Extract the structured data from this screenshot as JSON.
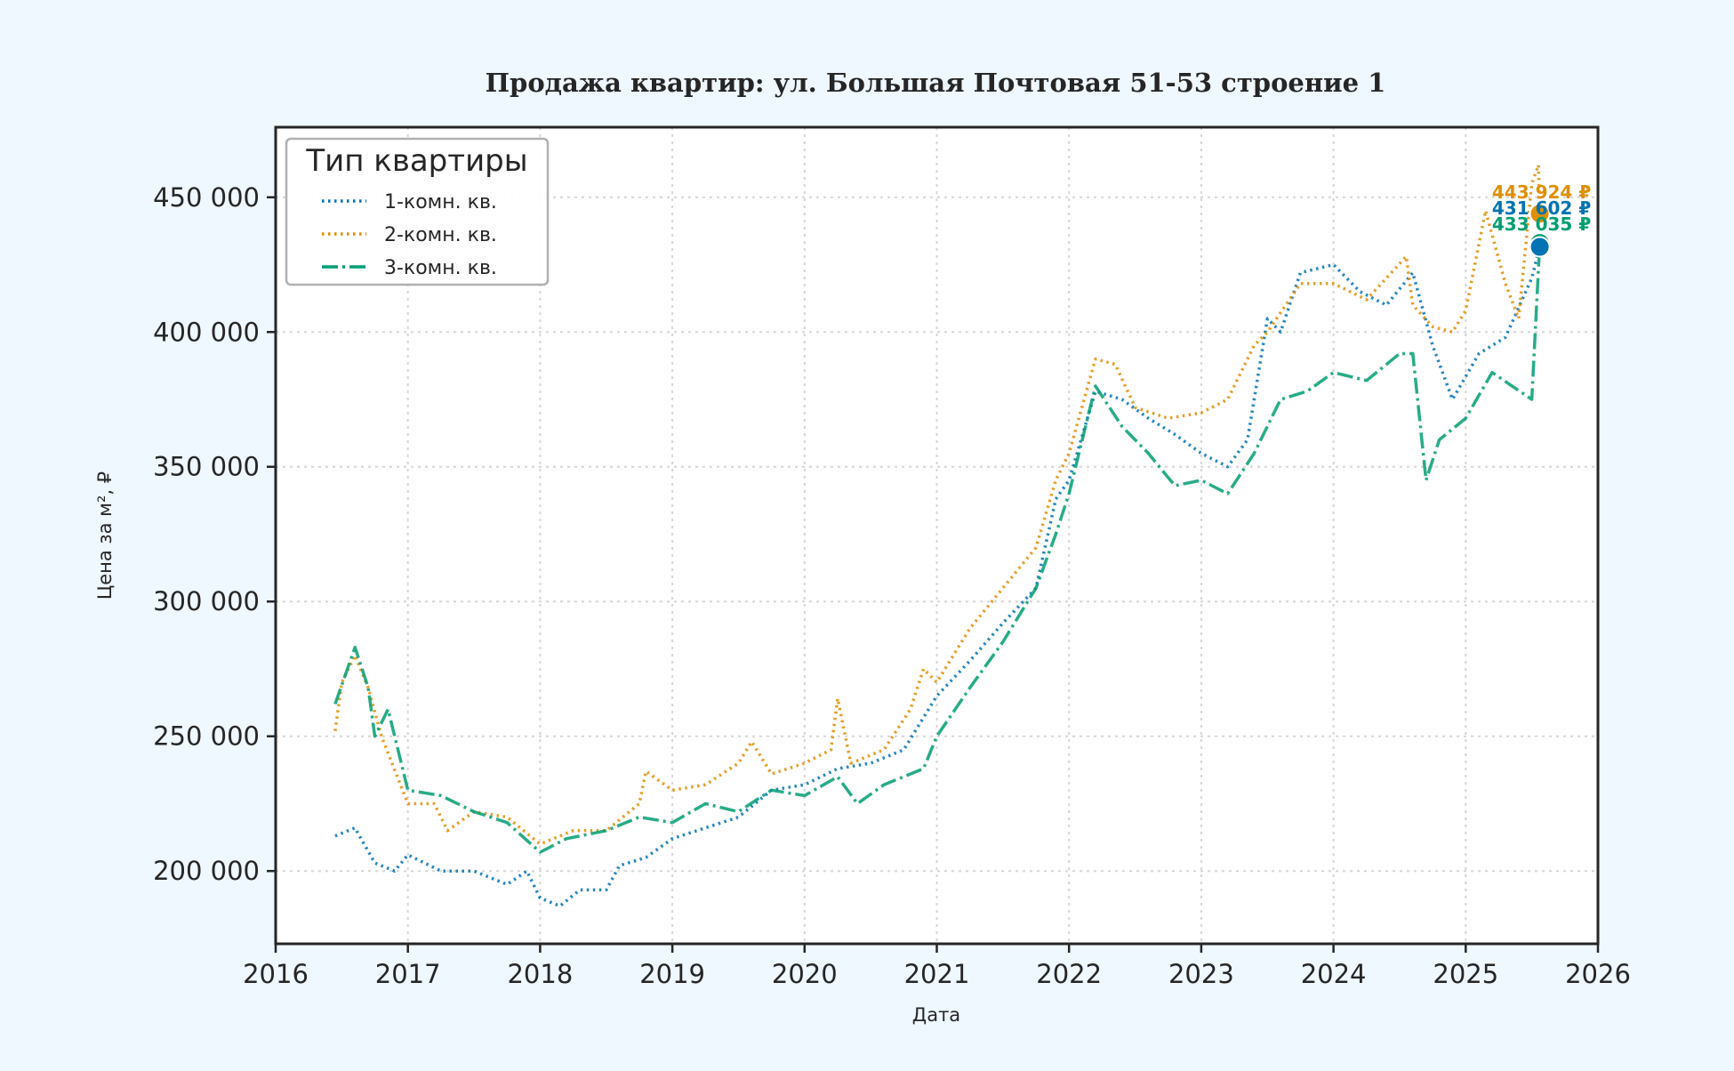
{
  "chart_data": {
    "type": "line",
    "title": "Продажа квартир: ул. Большая Почтовая 51-53 строение 1",
    "xlabel": "Дата",
    "ylabel": "Цена за м², ₽",
    "xlim": [
      2016,
      2026
    ],
    "ylim": [
      173000,
      476000
    ],
    "xticks": [
      2016,
      2017,
      2018,
      2019,
      2020,
      2021,
      2022,
      2023,
      2024,
      2025,
      2026
    ],
    "yticks": [
      200000,
      250000,
      300000,
      350000,
      400000,
      450000
    ],
    "ytick_labels": [
      "200 000",
      "250 000",
      "300 000",
      "350 000",
      "400 000",
      "450 000"
    ],
    "grid": true,
    "legend": {
      "title": "Тип квартиры",
      "placement": "top-left"
    },
    "series": [
      {
        "name": "1-комн. кв.",
        "color": "#0173b2",
        "style": "dotted",
        "x": [
          2016.45,
          2016.6,
          2016.75,
          2016.9,
          2017.0,
          2017.25,
          2017.5,
          2017.75,
          2017.9,
          2018.0,
          2018.15,
          2018.3,
          2018.5,
          2018.6,
          2018.8,
          2019.0,
          2019.25,
          2019.5,
          2019.75,
          2020.0,
          2020.25,
          2020.5,
          2020.75,
          2021.0,
          2021.25,
          2021.5,
          2021.75,
          2021.9,
          2022.0,
          2022.2,
          2022.4,
          2022.6,
          2022.8,
          2023.0,
          2023.2,
          2023.35,
          2023.5,
          2023.6,
          2023.75,
          2024.0,
          2024.2,
          2024.4,
          2024.6,
          2024.75,
          2024.9,
          2025.1,
          2025.3,
          2025.5,
          2025.56
        ],
        "y": [
          213000,
          216000,
          203000,
          200000,
          206000,
          200000,
          200000,
          195000,
          200000,
          190000,
          187000,
          193000,
          193000,
          202000,
          205000,
          212000,
          216000,
          220000,
          230000,
          232000,
          238000,
          240000,
          245000,
          265000,
          278000,
          292000,
          305000,
          338000,
          345000,
          378000,
          375000,
          368000,
          362000,
          355000,
          350000,
          360000,
          405000,
          400000,
          422000,
          425000,
          415000,
          410000,
          422000,
          395000,
          375000,
          392000,
          398000,
          420000,
          431602
        ]
      },
      {
        "name": "2-комн. кв.",
        "color": "#de8f05",
        "style": "dotted",
        "x": [
          2016.45,
          2016.5,
          2016.6,
          2016.7,
          2016.8,
          2017.0,
          2017.2,
          2017.3,
          2017.5,
          2017.75,
          2018.0,
          2018.25,
          2018.5,
          2018.75,
          2018.8,
          2019.0,
          2019.25,
          2019.5,
          2019.6,
          2019.75,
          2020.0,
          2020.2,
          2020.25,
          2020.35,
          2020.6,
          2020.8,
          2020.9,
          2021.0,
          2021.25,
          2021.5,
          2021.75,
          2021.9,
          2022.0,
          2022.2,
          2022.35,
          2022.5,
          2022.75,
          2023.0,
          2023.2,
          2023.4,
          2023.5,
          2023.75,
          2024.0,
          2024.25,
          2024.55,
          2024.6,
          2024.75,
          2024.9,
          2025.0,
          2025.15,
          2025.3,
          2025.4,
          2025.5,
          2025.55,
          2025.56
        ],
        "y": [
          252000,
          270000,
          280000,
          268000,
          250000,
          225000,
          225000,
          215000,
          222000,
          220000,
          210000,
          215000,
          215000,
          225000,
          237000,
          230000,
          232000,
          240000,
          248000,
          236000,
          240000,
          245000,
          264000,
          240000,
          245000,
          260000,
          275000,
          270000,
          290000,
          305000,
          320000,
          345000,
          355000,
          390000,
          388000,
          372000,
          368000,
          370000,
          375000,
          395000,
          400000,
          418000,
          418000,
          412000,
          428000,
          410000,
          402000,
          400000,
          408000,
          445000,
          418000,
          405000,
          455000,
          462000,
          443924
        ]
      },
      {
        "name": "3-комн. кв.",
        "color": "#029e73",
        "style": "dashdot",
        "x": [
          2016.45,
          2016.6,
          2016.7,
          2016.75,
          2016.85,
          2017.0,
          2017.25,
          2017.5,
          2017.75,
          2018.0,
          2018.2,
          2018.5,
          2018.75,
          2019.0,
          2019.25,
          2019.5,
          2019.75,
          2020.0,
          2020.25,
          2020.4,
          2020.6,
          2020.9,
          2021.0,
          2021.25,
          2021.5,
          2021.75,
          2021.9,
          2022.0,
          2022.2,
          2022.4,
          2022.6,
          2022.8,
          2023.0,
          2023.2,
          2023.4,
          2023.6,
          2023.8,
          2024.0,
          2024.25,
          2024.5,
          2024.6,
          2024.7,
          2024.8,
          2025.0,
          2025.2,
          2025.35,
          2025.5,
          2025.56
        ],
        "y": [
          262000,
          283000,
          268000,
          250000,
          260000,
          230000,
          228000,
          222000,
          218000,
          207000,
          212000,
          215000,
          220000,
          218000,
          225000,
          222000,
          230000,
          228000,
          235000,
          225000,
          232000,
          238000,
          250000,
          268000,
          285000,
          305000,
          325000,
          340000,
          380000,
          365000,
          355000,
          343000,
          345000,
          340000,
          355000,
          375000,
          378000,
          385000,
          382000,
          392000,
          392000,
          345000,
          360000,
          368000,
          385000,
          380000,
          375000,
          433035
        ]
      }
    ],
    "annotations": [
      {
        "text": "443 924 ₽",
        "color": "#de8f05",
        "x": 2025.56,
        "y": 443924
      },
      {
        "text": "431 602 ₽",
        "color": "#0173b2",
        "x": 2025.56,
        "y": 431602
      },
      {
        "text": "433 035 ₽",
        "color": "#029e73",
        "x": 2025.56,
        "y": 433035
      }
    ]
  }
}
